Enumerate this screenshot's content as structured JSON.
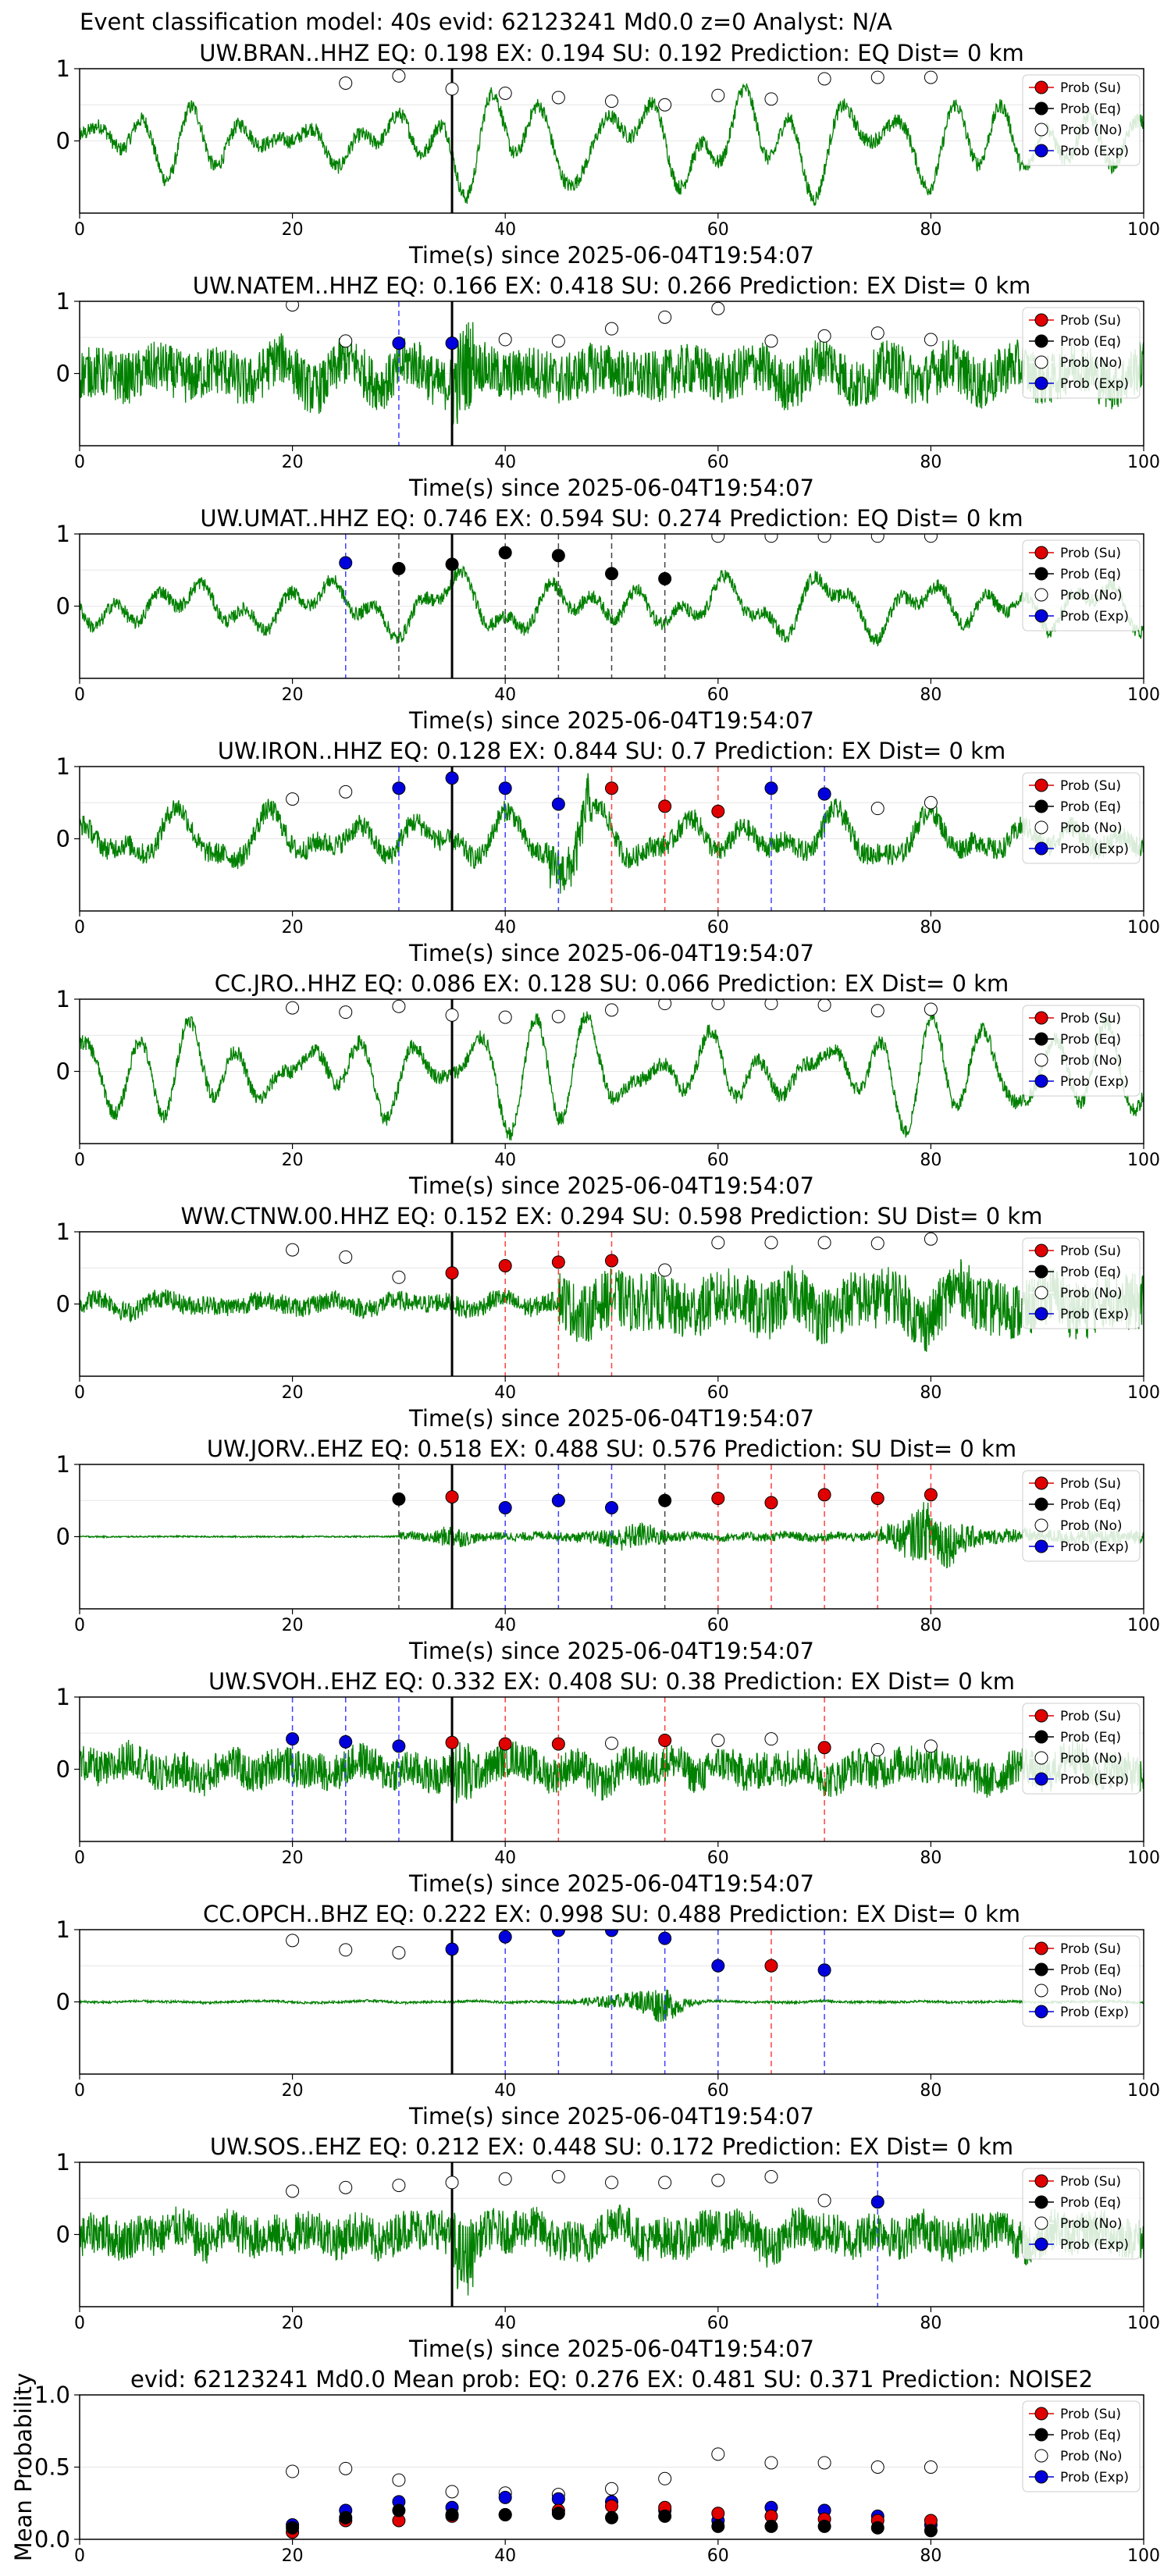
{
  "suptitle": "Event classification model: 40s evid: 62123241 Md0.0 z=0 Analyst: N/A",
  "legend_labels": [
    "Prob (Su)",
    "Prob (Eq)",
    "Prob (No)",
    "Prob (Exp)"
  ],
  "colors": {
    "Su": "#e00000",
    "Eq": "#000000",
    "No": "#ffffff",
    "Exp": "#0000dd",
    "trace": "#008000"
  },
  "chart_data": [
    {
      "type": "line",
      "title": "UW.BRAN..HHZ    EQ: 0.198  EX: 0.194  SU: 0.192    Prediction: EQ    Dist= 0 km",
      "xlabel": "Time(s) since 2025-06-04T19:54:07",
      "xlim": [
        0,
        100
      ],
      "ylim": [
        -1,
        1
      ],
      "x_ticks": [
        "0",
        "20",
        "40",
        "60",
        "80",
        "100"
      ],
      "y_ticks": [
        "1",
        "0"
      ],
      "onset": 35,
      "amp": 0.6,
      "style": "wavy",
      "points": [
        [
          25,
          0.8,
          "No"
        ],
        [
          30,
          0.9,
          "No"
        ],
        [
          35,
          0.72,
          "No"
        ],
        [
          40,
          0.66,
          "No"
        ],
        [
          45,
          0.6,
          "No"
        ],
        [
          50,
          0.55,
          "No"
        ],
        [
          55,
          0.5,
          "No"
        ],
        [
          60,
          0.63,
          "No"
        ],
        [
          65,
          0.58,
          "No"
        ],
        [
          70,
          0.86,
          "No"
        ],
        [
          75,
          0.88,
          "No"
        ],
        [
          80,
          0.88,
          "No"
        ]
      ]
    },
    {
      "type": "line",
      "title": "UW.NATEM..HHZ   EQ: 0.166  EX: 0.418  SU: 0.266   Prediction: EX    Dist= 0 km",
      "xlabel": "Time(s) since 2025-06-04T19:54:07",
      "xlim": [
        0,
        100
      ],
      "ylim": [
        -1,
        1
      ],
      "x_ticks": [
        "0",
        "20",
        "40",
        "60",
        "80",
        "100"
      ],
      "y_ticks": [
        "1",
        "0"
      ],
      "onset": 35,
      "amp": 0.55,
      "style": "noisy",
      "points": [
        [
          20,
          0.95,
          "No"
        ],
        [
          25,
          0.45,
          "No"
        ],
        [
          30,
          0.42,
          "Exp"
        ],
        [
          35,
          0.42,
          "Exp"
        ],
        [
          40,
          0.47,
          "No"
        ],
        [
          45,
          0.45,
          "No"
        ],
        [
          50,
          0.62,
          "No"
        ],
        [
          55,
          0.78,
          "No"
        ],
        [
          60,
          0.9,
          "No"
        ],
        [
          65,
          0.45,
          "No"
        ],
        [
          70,
          0.52,
          "No"
        ],
        [
          75,
          0.56,
          "No"
        ],
        [
          80,
          0.47,
          "No"
        ]
      ]
    },
    {
      "type": "line",
      "title": "UW.UMAT..HHZ   EQ: 0.746  EX: 0.594  SU: 0.274   Prediction: EQ    Dist= 0 km",
      "xlabel": "Time(s) since 2025-06-04T19:54:07",
      "xlim": [
        0,
        100
      ],
      "ylim": [
        -1,
        1
      ],
      "x_ticks": [
        "0",
        "20",
        "40",
        "60",
        "80",
        "100"
      ],
      "y_ticks": [
        "1",
        "0"
      ],
      "onset": 35,
      "amp": 0.55,
      "style": "wavy",
      "points": [
        [
          25,
          0.6,
          "Exp"
        ],
        [
          30,
          0.52,
          "Eq"
        ],
        [
          35,
          0.58,
          "Eq"
        ],
        [
          40,
          0.74,
          "Eq"
        ],
        [
          45,
          0.7,
          "Eq"
        ],
        [
          50,
          0.45,
          "Eq"
        ],
        [
          55,
          0.38,
          "Eq"
        ],
        [
          60,
          0.97,
          "No"
        ],
        [
          65,
          0.97,
          "No"
        ],
        [
          70,
          0.97,
          "No"
        ],
        [
          75,
          0.97,
          "No"
        ],
        [
          80,
          0.97,
          "No"
        ]
      ]
    },
    {
      "type": "line",
      "title": "UW.IRON..HHZ   EQ: 0.128  EX: 0.844  SU: 0.7   Prediction: EX    Dist= 0 km",
      "xlabel": "Time(s) since 2025-06-04T19:54:07",
      "xlim": [
        0,
        100
      ],
      "ylim": [
        -1,
        1
      ],
      "x_ticks": [
        "0",
        "20",
        "40",
        "60",
        "80",
        "100"
      ],
      "y_ticks": [
        "1",
        "0"
      ],
      "onset": 35,
      "amp": 0.5,
      "style": "mixed",
      "points": [
        [
          20,
          0.55,
          "No"
        ],
        [
          25,
          0.65,
          "No"
        ],
        [
          30,
          0.7,
          "Exp"
        ],
        [
          35,
          0.84,
          "Exp"
        ],
        [
          40,
          0.7,
          "Exp"
        ],
        [
          45,
          0.48,
          "Exp"
        ],
        [
          50,
          0.7,
          "Su"
        ],
        [
          55,
          0.45,
          "Su"
        ],
        [
          60,
          0.38,
          "Su"
        ],
        [
          65,
          0.7,
          "Exp"
        ],
        [
          70,
          0.62,
          "Exp"
        ],
        [
          75,
          0.42,
          "No"
        ],
        [
          80,
          0.5,
          "No"
        ]
      ]
    },
    {
      "type": "line",
      "title": "CC.JRO..HHZ   EQ: 0.086  EX: 0.128  SU: 0.066   Prediction: EX    Dist= 0 km",
      "xlabel": "Time(s) since 2025-06-04T19:54:07",
      "xlim": [
        0,
        100
      ],
      "ylim": [
        -1,
        1
      ],
      "x_ticks": [
        "0",
        "20",
        "40",
        "60",
        "80",
        "100"
      ],
      "y_ticks": [
        "1",
        "0"
      ],
      "onset": 35,
      "amp": 0.6,
      "style": "wavy",
      "points": [
        [
          20,
          0.88,
          "No"
        ],
        [
          25,
          0.82,
          "No"
        ],
        [
          30,
          0.9,
          "No"
        ],
        [
          35,
          0.78,
          "No"
        ],
        [
          40,
          0.75,
          "No"
        ],
        [
          45,
          0.76,
          "No"
        ],
        [
          50,
          0.85,
          "No"
        ],
        [
          55,
          0.94,
          "No"
        ],
        [
          60,
          0.94,
          "No"
        ],
        [
          65,
          0.94,
          "No"
        ],
        [
          70,
          0.92,
          "No"
        ],
        [
          75,
          0.84,
          "No"
        ],
        [
          80,
          0.86,
          "No"
        ]
      ]
    },
    {
      "type": "line",
      "title": "WW.CTNW.00.HHZ   EQ: 0.152  EX: 0.294  SU: 0.598   Prediction: SU    Dist= 0 km",
      "xlabel": "Time(s) since 2025-06-04T19:54:07",
      "xlim": [
        0,
        100
      ],
      "ylim": [
        -1,
        1
      ],
      "x_ticks": [
        "0",
        "20",
        "40",
        "60",
        "80",
        "100"
      ],
      "y_ticks": [
        "1",
        "0"
      ],
      "onset": 35,
      "amp": 0.5,
      "style": "burst_late",
      "points": [
        [
          20,
          0.75,
          "No"
        ],
        [
          25,
          0.65,
          "No"
        ],
        [
          30,
          0.37,
          "No"
        ],
        [
          35,
          0.43,
          "Su"
        ],
        [
          40,
          0.53,
          "Su"
        ],
        [
          45,
          0.58,
          "Su"
        ],
        [
          50,
          0.6,
          "Su"
        ],
        [
          55,
          0.47,
          "No"
        ],
        [
          60,
          0.85,
          "No"
        ],
        [
          65,
          0.85,
          "No"
        ],
        [
          70,
          0.85,
          "No"
        ],
        [
          75,
          0.84,
          "No"
        ],
        [
          80,
          0.9,
          "No"
        ]
      ]
    },
    {
      "type": "line",
      "title": "UW.JORV..EHZ   EQ: 0.518  EX: 0.488  SU: 0.576   Prediction: SU    Dist= 0 km",
      "xlabel": "Time(s) since 2025-06-04T19:54:07",
      "xlim": [
        0,
        100
      ],
      "ylim": [
        -1,
        1
      ],
      "x_ticks": [
        "0",
        "20",
        "40",
        "60",
        "80",
        "100"
      ],
      "y_ticks": [
        "1",
        "0"
      ],
      "onset": 35,
      "amp": 0.45,
      "style": "quiet_burst",
      "points": [
        [
          30,
          0.52,
          "Eq"
        ],
        [
          35,
          0.55,
          "Su"
        ],
        [
          40,
          0.4,
          "Exp"
        ],
        [
          45,
          0.5,
          "Exp"
        ],
        [
          50,
          0.4,
          "Exp"
        ],
        [
          55,
          0.5,
          "Eq"
        ],
        [
          60,
          0.53,
          "Su"
        ],
        [
          65,
          0.47,
          "Su"
        ],
        [
          70,
          0.58,
          "Su"
        ],
        [
          75,
          0.53,
          "Su"
        ],
        [
          80,
          0.58,
          "Su"
        ]
      ]
    },
    {
      "type": "line",
      "title": "UW.SVOH..EHZ   EQ: 0.332  EX: 0.408  SU: 0.38   Prediction: EX    Dist= 0 km",
      "xlabel": "Time(s) since 2025-06-04T19:54:07",
      "xlim": [
        0,
        100
      ],
      "ylim": [
        -1,
        1
      ],
      "x_ticks": [
        "0",
        "20",
        "40",
        "60",
        "80",
        "100"
      ],
      "y_ticks": [
        "1",
        "0"
      ],
      "onset": 35,
      "amp": 0.4,
      "style": "noisy",
      "points": [
        [
          20,
          0.42,
          "Exp"
        ],
        [
          25,
          0.38,
          "Exp"
        ],
        [
          30,
          0.32,
          "Exp"
        ],
        [
          35,
          0.37,
          "Su"
        ],
        [
          40,
          0.35,
          "Su"
        ],
        [
          45,
          0.35,
          "Su"
        ],
        [
          50,
          0.36,
          "No"
        ],
        [
          55,
          0.4,
          "Su"
        ],
        [
          60,
          0.4,
          "No"
        ],
        [
          65,
          0.42,
          "No"
        ],
        [
          70,
          0.3,
          "Su"
        ],
        [
          75,
          0.27,
          "No"
        ],
        [
          80,
          0.32,
          "No"
        ]
      ]
    },
    {
      "type": "line",
      "title": "CC.OPCH..BHZ   EQ: 0.222  EX: 0.998  SU: 0.488   Prediction: EX    Dist= 0 km",
      "xlabel": "Time(s) since 2025-06-04T19:54:07",
      "xlim": [
        0,
        100
      ],
      "ylim": [
        -1,
        1
      ],
      "x_ticks": [
        "0",
        "20",
        "40",
        "60",
        "80",
        "100"
      ],
      "y_ticks": [
        "1",
        "0"
      ],
      "onset": 35,
      "amp": 0.2,
      "style": "burst_mid",
      "points": [
        [
          20,
          0.85,
          "No"
        ],
        [
          25,
          0.72,
          "No"
        ],
        [
          30,
          0.68,
          "No"
        ],
        [
          35,
          0.73,
          "Exp"
        ],
        [
          40,
          0.9,
          "Exp"
        ],
        [
          45,
          0.99,
          "Exp"
        ],
        [
          50,
          0.99,
          "Exp"
        ],
        [
          55,
          0.88,
          "Exp"
        ],
        [
          60,
          0.5,
          "Exp"
        ],
        [
          65,
          0.5,
          "Su"
        ],
        [
          70,
          0.44,
          "Exp"
        ]
      ]
    },
    {
      "type": "line",
      "title": "UW.SOS..EHZ   EQ: 0.212  EX: 0.448  SU: 0.172   Prediction: EX    Dist= 0 km",
      "xlabel": "Time(s) since 2025-06-04T19:54:07",
      "xlim": [
        0,
        100
      ],
      "ylim": [
        -1,
        1
      ],
      "x_ticks": [
        "0",
        "20",
        "40",
        "60",
        "80",
        "100"
      ],
      "y_ticks": [
        "1",
        "0"
      ],
      "onset": 35,
      "amp": 0.45,
      "style": "noisy",
      "points": [
        [
          20,
          0.6,
          "No"
        ],
        [
          25,
          0.65,
          "No"
        ],
        [
          30,
          0.68,
          "No"
        ],
        [
          35,
          0.72,
          "No"
        ],
        [
          40,
          0.77,
          "No"
        ],
        [
          45,
          0.8,
          "No"
        ],
        [
          50,
          0.72,
          "No"
        ],
        [
          55,
          0.72,
          "No"
        ],
        [
          60,
          0.75,
          "No"
        ],
        [
          65,
          0.8,
          "No"
        ],
        [
          70,
          0.47,
          "No"
        ],
        [
          75,
          0.45,
          "Exp"
        ]
      ]
    },
    {
      "type": "scatter",
      "title": "evid: 62123241  Md0.0   Mean prob:   EQ: 0.276  EX: 0.481  SU: 0.371   Prediction: NOISE2",
      "xlabel": "",
      "ylabel": "Mean Probability",
      "xlim": [
        0,
        100
      ],
      "ylim": [
        0,
        1
      ],
      "x_ticks": [
        "0",
        "20",
        "40",
        "60",
        "80",
        "100"
      ],
      "y_ticks": [
        "1.0",
        "0.5",
        "0.0"
      ],
      "series": [
        {
          "key": "No",
          "x": [
            20,
            25,
            30,
            35,
            40,
            45,
            50,
            55,
            60,
            65,
            70,
            75,
            80
          ],
          "values": [
            0.47,
            0.49,
            0.41,
            0.33,
            0.32,
            0.31,
            0.35,
            0.42,
            0.59,
            0.53,
            0.53,
            0.5,
            0.5
          ]
        },
        {
          "key": "Exp",
          "x": [
            20,
            25,
            30,
            35,
            40,
            45,
            50,
            55,
            60,
            65,
            70,
            75,
            80
          ],
          "values": [
            0.1,
            0.2,
            0.26,
            0.22,
            0.29,
            0.28,
            0.26,
            0.2,
            0.13,
            0.22,
            0.2,
            0.16,
            0.1
          ]
        },
        {
          "key": "Su",
          "x": [
            20,
            25,
            30,
            35,
            40,
            45,
            50,
            55,
            60,
            65,
            70,
            75,
            80
          ],
          "values": [
            0.05,
            0.13,
            0.13,
            0.16,
            0.17,
            0.2,
            0.23,
            0.22,
            0.18,
            0.16,
            0.14,
            0.13,
            0.13
          ]
        },
        {
          "key": "Eq",
          "x": [
            20,
            25,
            30,
            35,
            40,
            45,
            50,
            55,
            60,
            65,
            70,
            75,
            80
          ],
          "values": [
            0.08,
            0.15,
            0.2,
            0.17,
            0.17,
            0.18,
            0.15,
            0.16,
            0.09,
            0.09,
            0.09,
            0.08,
            0.06
          ]
        }
      ]
    }
  ]
}
